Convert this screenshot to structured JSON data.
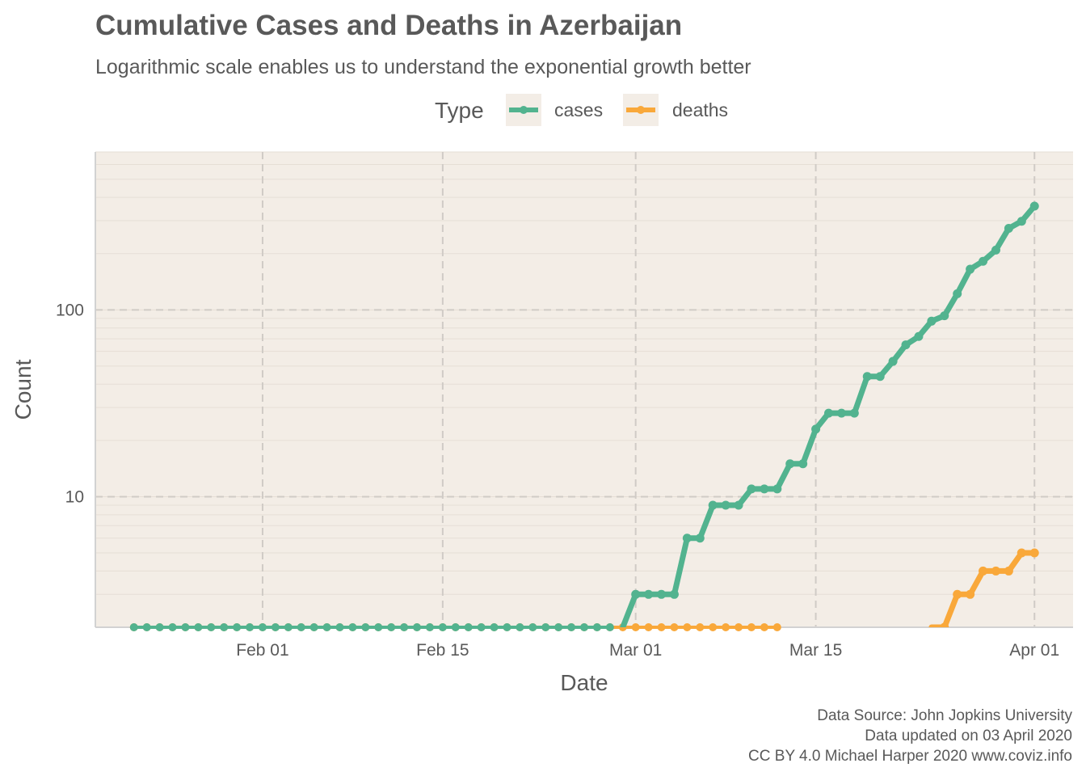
{
  "chart_data": {
    "type": "line",
    "title": "Cumulative Cases and Deaths in Azerbaijan",
    "subtitle": "Logarithmic scale enables us to understand the exponential growth better",
    "xlabel": "Date",
    "ylabel": "Count",
    "y_scale": "log10",
    "ylim": [
      2,
      700
    ],
    "xlim": [
      "2020-01-19",
      "2020-04-04"
    ],
    "x_ticks": [
      {
        "date": "2020-02-01",
        "label": "Feb 01"
      },
      {
        "date": "2020-02-15",
        "label": "Feb 15"
      },
      {
        "date": "2020-03-01",
        "label": "Mar 01"
      },
      {
        "date": "2020-03-15",
        "label": "Mar 15"
      },
      {
        "date": "2020-04-01",
        "label": "Apr 01"
      }
    ],
    "y_ticks": [
      {
        "value": 10,
        "label": "10"
      },
      {
        "value": 100,
        "label": "100"
      }
    ],
    "grid": true,
    "background": "#f3ede6",
    "legend": {
      "title": "Type",
      "position": "top"
    },
    "series": [
      {
        "name": "cases",
        "color": "#52b38f",
        "points": [
          [
            "2020-02-29",
            1
          ],
          [
            "2020-03-01",
            3
          ],
          [
            "2020-03-02",
            3
          ],
          [
            "2020-03-03",
            3
          ],
          [
            "2020-03-04",
            3
          ],
          [
            "2020-03-05",
            6
          ],
          [
            "2020-03-06",
            6
          ],
          [
            "2020-03-07",
            9
          ],
          [
            "2020-03-08",
            9
          ],
          [
            "2020-03-09",
            9
          ],
          [
            "2020-03-10",
            11
          ],
          [
            "2020-03-11",
            11
          ],
          [
            "2020-03-12",
            11
          ],
          [
            "2020-03-13",
            15
          ],
          [
            "2020-03-14",
            15
          ],
          [
            "2020-03-15",
            23
          ],
          [
            "2020-03-16",
            28
          ],
          [
            "2020-03-17",
            28
          ],
          [
            "2020-03-18",
            28
          ],
          [
            "2020-03-19",
            44
          ],
          [
            "2020-03-20",
            44
          ],
          [
            "2020-03-21",
            53
          ],
          [
            "2020-03-22",
            65
          ],
          [
            "2020-03-23",
            72
          ],
          [
            "2020-03-24",
            87
          ],
          [
            "2020-03-25",
            93
          ],
          [
            "2020-03-26",
            122
          ],
          [
            "2020-03-27",
            165
          ],
          [
            "2020-03-28",
            182
          ],
          [
            "2020-03-29",
            209
          ],
          [
            "2020-03-30",
            273
          ],
          [
            "2020-03-31",
            298
          ],
          [
            "2020-04-01",
            359
          ]
        ]
      },
      {
        "name": "deaths",
        "color": "#f9a83a",
        "points": [
          [
            "2020-03-24",
            1
          ],
          [
            "2020-03-25",
            2
          ],
          [
            "2020-03-26",
            3
          ],
          [
            "2020-03-27",
            3
          ],
          [
            "2020-03-28",
            4
          ],
          [
            "2020-03-29",
            4
          ],
          [
            "2020-03-30",
            4
          ],
          [
            "2020-03-31",
            5
          ],
          [
            "2020-04-01",
            5
          ]
        ]
      }
    ],
    "floor_markers": {
      "cases": {
        "from": "2020-01-22",
        "to": "2020-02-28"
      },
      "deaths": {
        "from": "2020-01-22",
        "to": "2020-03-12"
      }
    }
  },
  "caption": {
    "line1": "Data Source: John Jopkins University",
    "line2": "Data updated on 03 April 2020",
    "line3": "CC BY 4.0 Michael Harper 2020 www.coviz.info"
  }
}
